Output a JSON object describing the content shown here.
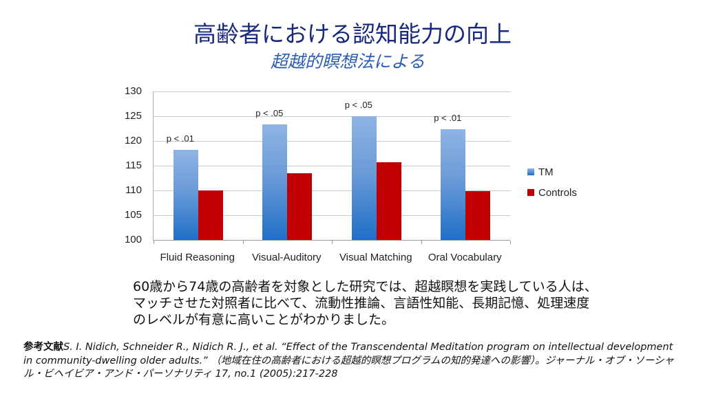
{
  "slide": {
    "title": "高齢者における認知能力の向上",
    "subtitle": "超越的瞑想法による",
    "body": "60歳から74歳の高齢者を対象とした研究では、超越瞑想を実践している人は、マッチさせた対照者に比べて、流動性推論、言語性知能、長期記憶、処理速度のレベルが有意に高いことがわかりました。",
    "reference_label": "参考文献",
    "reference_text": "S. I. Nidich, Schneider R., Nidich R. J., et al. “Effect of the Transcendental Meditation program on intellectual development in community-dwelling older adults.” （地域在住の高齢者における超越的瞑想プログラムの知的発達への影響）。ジャーナル・オブ・ソーシャル・ビヘイビア・アンド・パーソナリティ 17, no.1 (2005):217-228"
  },
  "colors": {
    "title": "#17287f",
    "subtitle": "#2a5db5",
    "tm": "#4a86cf",
    "controls": "#c00000"
  },
  "chart_data": {
    "type": "bar",
    "title": "",
    "xlabel": "",
    "ylabel": "",
    "categories": [
      "Fluid Reasoning",
      "Visual-Auditory",
      "Visual Matching",
      "Oral Vocabulary"
    ],
    "series": [
      {
        "name": "TM",
        "values": [
          118.2,
          123.3,
          125.0,
          122.4
        ]
      },
      {
        "name": "Controls",
        "values": [
          110.0,
          113.5,
          115.7,
          109.9
        ]
      }
    ],
    "annotations": [
      "p < .01",
      "p < .05",
      "p < .05",
      "p < .01"
    ],
    "ylim": [
      100,
      130
    ],
    "yticks": [
      "130",
      "125",
      "120",
      "115",
      "110",
      "105",
      "100"
    ],
    "grid": true,
    "legend_position": "right"
  }
}
